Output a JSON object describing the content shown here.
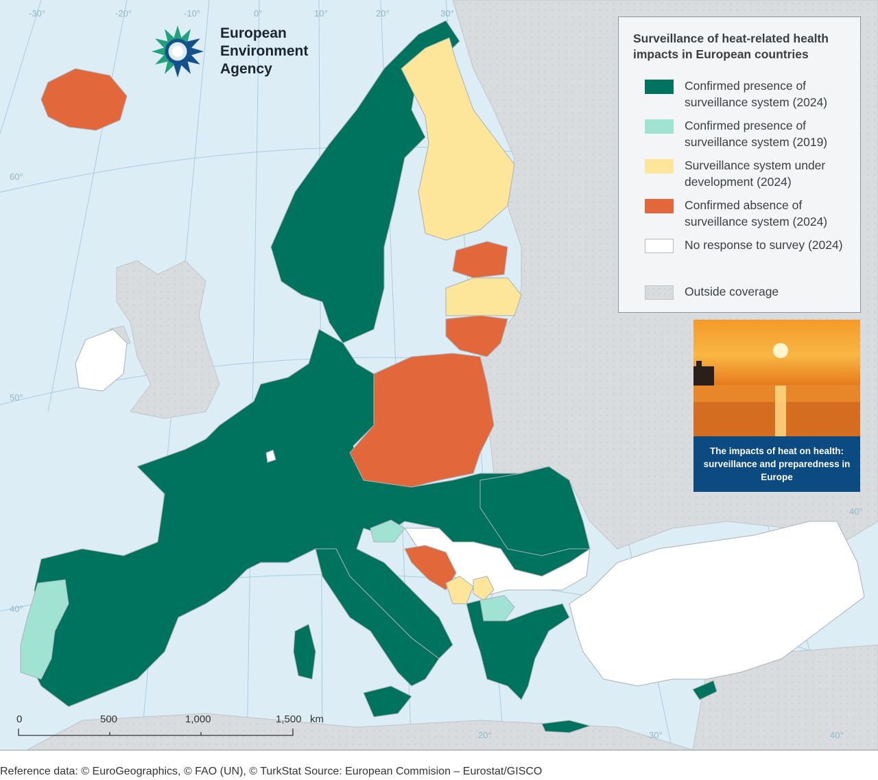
{
  "logo": {
    "text": "European\nEnvironment\nAgency"
  },
  "legend": {
    "title": "Surveillance of heat-related health impacts in European countries",
    "items": [
      {
        "label": "Confirmed presence of surveillance system (2024)",
        "color": "#00735f"
      },
      {
        "label": "Confirmed presence of surveillance system (2019)",
        "color": "#a0e3d3"
      },
      {
        "label": "Surveillance system under development (2024)",
        "color": "#fde59a"
      },
      {
        "label": "Confirmed absence of surveillance system (2024)",
        "color": "#e2673a"
      },
      {
        "label": "No response to survey (2024)",
        "color": "#ffffff"
      },
      {
        "label": "Outside coverage",
        "color": "#d9dcde"
      }
    ]
  },
  "promo": {
    "caption": "The impacts of heat on health: surveillance and preparedness in Europe"
  },
  "graticule_labels": [
    "-30°",
    "-20°",
    "-10°",
    "0°",
    "10°",
    "20°",
    "30°",
    "60°",
    "50°",
    "40°",
    "40°",
    "40°",
    "20°",
    "30°"
  ],
  "scale": {
    "ticks": [
      "0",
      "500",
      "1,000",
      "1,500"
    ],
    "unit": "km"
  },
  "reference_note": "Reference data: © EuroGeographics, © FAO (UN), © TurkStat Source: European Commision – Eurostat/GISCO",
  "colors": {
    "sea": "#dcedf6",
    "outside": "#d9dcde",
    "graticule": "#a9cbe0"
  }
}
